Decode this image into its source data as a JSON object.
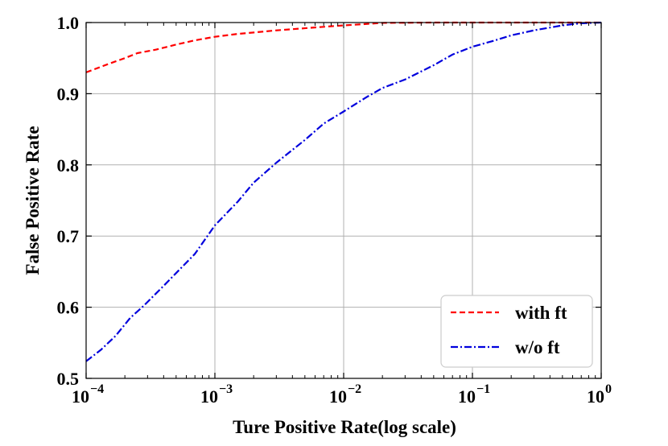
{
  "chart_data": {
    "type": "line",
    "title": "",
    "xlabel": "Ture Positive Rate(log scale)",
    "ylabel": "False Positive Rate",
    "xscale": "log",
    "xlim": [
      0.0001,
      1
    ],
    "ylim": [
      0.5,
      1.0
    ],
    "grid": true,
    "legend_position": "lower-right",
    "x_ticks": [
      {
        "value": 0.0001,
        "base": "10",
        "exp": "−4"
      },
      {
        "value": 0.001,
        "base": "10",
        "exp": "−3"
      },
      {
        "value": 0.01,
        "base": "10",
        "exp": "−2"
      },
      {
        "value": 0.1,
        "base": "10",
        "exp": "−1"
      },
      {
        "value": 1,
        "base": "10",
        "exp": "0"
      }
    ],
    "y_ticks": [
      {
        "value": 0.5,
        "label": "0.5"
      },
      {
        "value": 0.6,
        "label": "0.6"
      },
      {
        "value": 0.7,
        "label": "0.7"
      },
      {
        "value": 0.8,
        "label": "0.8"
      },
      {
        "value": 0.9,
        "label": "0.9"
      },
      {
        "value": 1.0,
        "label": "1.0"
      }
    ],
    "series": [
      {
        "name": "with ft",
        "color": "#ff0000",
        "dash": "dashed",
        "points": [
          [
            0.0001,
            0.93
          ],
          [
            0.00015,
            0.942
          ],
          [
            0.0002,
            0.95
          ],
          [
            0.00025,
            0.957
          ],
          [
            0.00035,
            0.962
          ],
          [
            0.0005,
            0.969
          ],
          [
            0.0007,
            0.975
          ],
          [
            0.001,
            0.98
          ],
          [
            0.0015,
            0.984
          ],
          [
            0.002,
            0.986
          ],
          [
            0.003,
            0.989
          ],
          [
            0.005,
            0.992
          ],
          [
            0.007,
            0.994
          ],
          [
            0.01,
            0.996
          ],
          [
            0.015,
            0.998
          ],
          [
            0.02,
            0.9995
          ],
          [
            0.05,
            1.0
          ],
          [
            1,
            1.0
          ]
        ]
      },
      {
        "name": "w/o ft",
        "color": "#0000dd",
        "dash": "dashdot",
        "points": [
          [
            0.0001,
            0.524
          ],
          [
            0.00013,
            0.54
          ],
          [
            0.00017,
            0.56
          ],
          [
            0.00022,
            0.585
          ],
          [
            0.00028,
            0.602
          ],
          [
            0.0004,
            0.63
          ],
          [
            0.0005,
            0.648
          ],
          [
            0.0007,
            0.675
          ],
          [
            0.001,
            0.715
          ],
          [
            0.0015,
            0.748
          ],
          [
            0.002,
            0.775
          ],
          [
            0.003,
            0.803
          ],
          [
            0.005,
            0.835
          ],
          [
            0.007,
            0.858
          ],
          [
            0.01,
            0.875
          ],
          [
            0.015,
            0.895
          ],
          [
            0.02,
            0.908
          ],
          [
            0.03,
            0.92
          ],
          [
            0.05,
            0.94
          ],
          [
            0.07,
            0.955
          ],
          [
            0.1,
            0.966
          ],
          [
            0.15,
            0.975
          ],
          [
            0.2,
            0.982
          ],
          [
            0.3,
            0.989
          ],
          [
            0.5,
            0.996
          ],
          [
            0.7,
            0.999
          ],
          [
            1,
            1.0
          ]
        ]
      }
    ]
  }
}
